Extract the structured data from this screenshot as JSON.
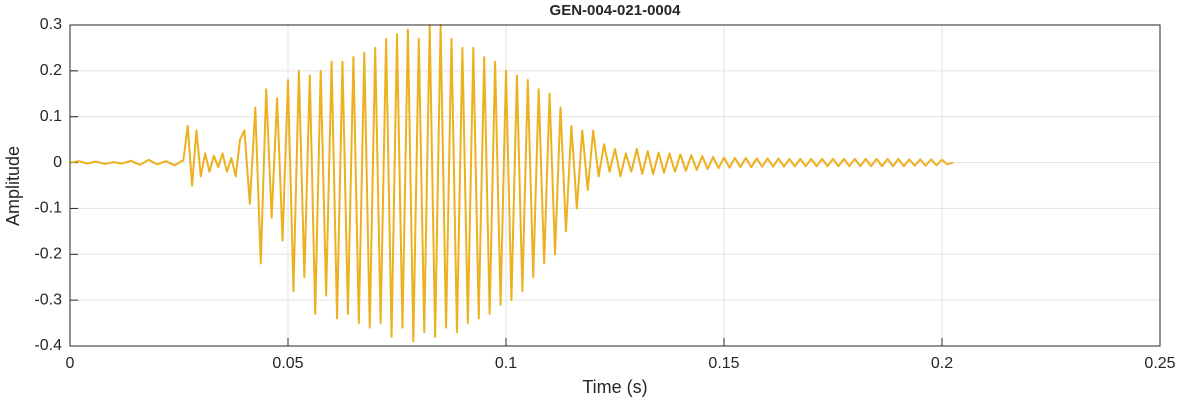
{
  "chart_data": {
    "type": "line",
    "title": "GEN-004-021-0004",
    "x_label": "Time (s)",
    "y_label": "Amplitude",
    "color": "#EDB120",
    "grid": true,
    "xlim": [
      0,
      0.25
    ],
    "xticks": [
      0,
      0.05,
      0.1,
      0.15,
      0.2,
      0.25
    ],
    "ylim": [
      -0.4,
      0.3
    ],
    "yticks": [
      -0.4,
      -0.3,
      -0.2,
      -0.1,
      0,
      0.1,
      0.2,
      0.3
    ],
    "x": [
      0,
      0.002,
      0.004,
      0.006,
      0.008,
      0.01,
      0.012,
      0.014,
      0.016,
      0.018,
      0.02,
      0.022,
      0.024,
      0.026,
      0.027,
      0.028,
      0.029,
      0.03,
      0.031,
      0.032,
      0.033,
      0.034,
      0.035,
      0.036,
      0.037,
      0.038,
      0.039,
      0.04,
      0.04125,
      0.0425,
      0.04375,
      0.045,
      0.04625,
      0.0475,
      0.04875,
      0.05,
      0.05125,
      0.0525,
      0.05375,
      0.055,
      0.05625,
      0.0575,
      0.05875,
      0.06,
      0.06125,
      0.0625,
      0.06375,
      0.065,
      0.06625,
      0.0675,
      0.06875,
      0.07,
      0.07125,
      0.0725,
      0.07375,
      0.075,
      0.07625,
      0.0775,
      0.07875,
      0.08,
      0.08125,
      0.0825,
      0.08375,
      0.085,
      0.08625,
      0.0875,
      0.08875,
      0.09,
      0.09125,
      0.0925,
      0.09375,
      0.095,
      0.09625,
      0.0975,
      0.09875,
      0.1,
      0.10125,
      0.1025,
      0.10375,
      0.105,
      0.10625,
      0.1075,
      0.10875,
      0.11,
      0.11125,
      0.1125,
      0.11375,
      0.115,
      0.11625,
      0.1175,
      0.11875,
      0.12,
      0.12125,
      0.1225,
      0.12375,
      0.125,
      0.12625,
      0.1275,
      0.12875,
      0.13,
      0.13125,
      0.1325,
      0.13375,
      0.135,
      0.13625,
      0.1375,
      0.13875,
      0.14,
      0.14125,
      0.1425,
      0.14375,
      0.145,
      0.14625,
      0.1475,
      0.14875,
      0.15,
      0.15125,
      0.1525,
      0.15375,
      0.155,
      0.15625,
      0.1575,
      0.15875,
      0.16,
      0.16125,
      0.1625,
      0.16375,
      0.165,
      0.16625,
      0.1675,
      0.16875,
      0.17,
      0.17125,
      0.1725,
      0.17375,
      0.175,
      0.17625,
      0.1775,
      0.17875,
      0.18,
      0.18125,
      0.1825,
      0.18375,
      0.185,
      0.18625,
      0.1875,
      0.18875,
      0.19,
      0.19125,
      0.1925,
      0.19375,
      0.195,
      0.19625,
      0.1975,
      0.19875,
      0.2,
      0.20125,
      0.2025
    ],
    "values": [
      0,
      0.003,
      -0.002,
      0.002,
      -0.003,
      0.001,
      -0.002,
      0.004,
      -0.005,
      0.006,
      -0.004,
      0.003,
      -0.006,
      0.005,
      0.08,
      -0.05,
      0.07,
      -0.03,
      0.02,
      -0.02,
      0.015,
      -0.01,
      0.02,
      -0.02,
      0.01,
      -0.03,
      0.05,
      0.07,
      -0.09,
      0.12,
      -0.22,
      0.16,
      -0.12,
      0.14,
      -0.17,
      0.18,
      -0.28,
      0.2,
      -0.25,
      0.19,
      -0.33,
      0.2,
      -0.29,
      0.22,
      -0.34,
      0.22,
      -0.33,
      0.23,
      -0.35,
      0.24,
      -0.36,
      0.25,
      -0.35,
      0.27,
      -0.38,
      0.28,
      -0.36,
      0.29,
      -0.39,
      0.27,
      -0.37,
      0.3,
      -0.38,
      0.3,
      -0.36,
      0.27,
      -0.37,
      0.25,
      -0.35,
      0.25,
      -0.34,
      0.23,
      -0.33,
      0.22,
      -0.31,
      0.2,
      -0.3,
      0.19,
      -0.28,
      0.18,
      -0.25,
      0.16,
      -0.22,
      0.15,
      -0.2,
      0.12,
      -0.15,
      0.08,
      -0.1,
      0.07,
      -0.06,
      0.07,
      -0.03,
      0.04,
      -0.02,
      0.03,
      -0.03,
      0.02,
      -0.02,
      0.03,
      -0.025,
      0.025,
      -0.025,
      0.022,
      -0.022,
      0.02,
      -0.02,
      0.018,
      -0.018,
      0.016,
      -0.016,
      0.014,
      -0.014,
      0.012,
      -0.012,
      0.011,
      -0.011,
      0.01,
      -0.01,
      0.01,
      -0.01,
      0.009,
      -0.009,
      0.009,
      -0.009,
      0.009,
      -0.009,
      0.008,
      -0.008,
      0.008,
      -0.008,
      0.008,
      -0.008,
      0.008,
      -0.008,
      0.008,
      -0.008,
      0.008,
      -0.008,
      0.008,
      -0.008,
      0.008,
      -0.008,
      0.008,
      -0.008,
      0.008,
      -0.008,
      0.008,
      -0.008,
      0.007,
      -0.007,
      0.007,
      -0.007,
      0.007,
      -0.006,
      0.006,
      -0.004,
      0
    ]
  }
}
